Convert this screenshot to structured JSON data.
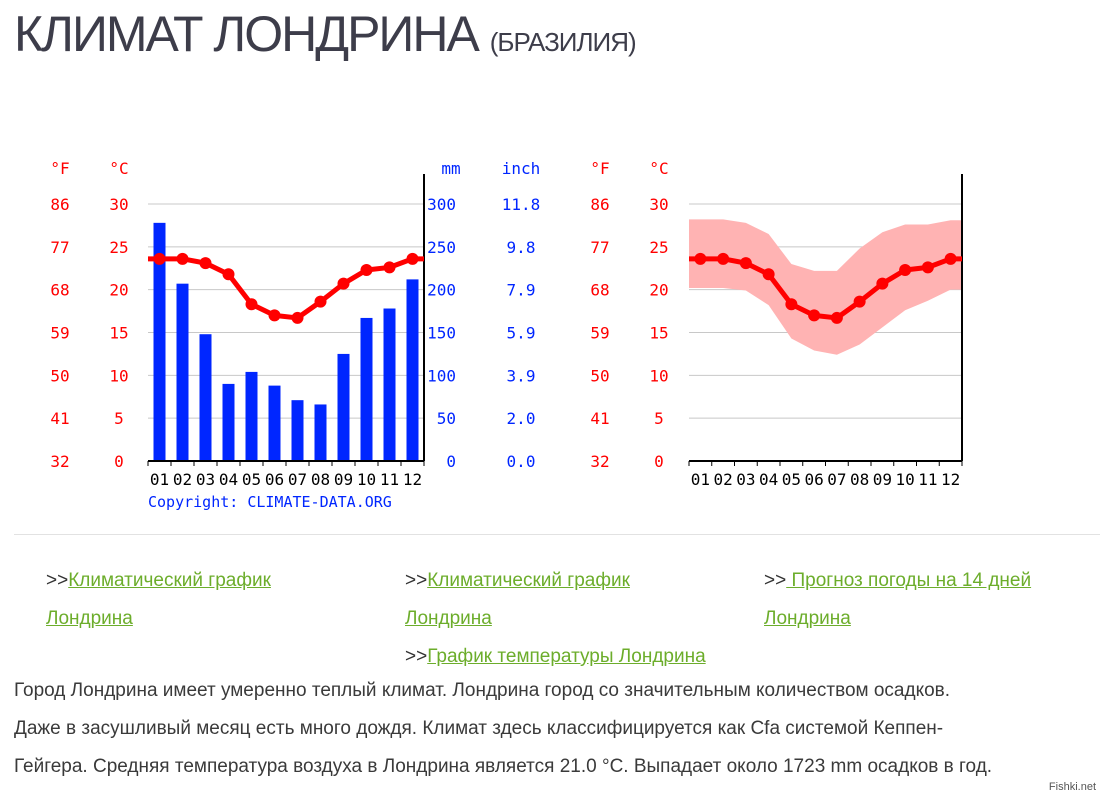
{
  "page": {
    "title": "КЛИМАТ ЛОНДРИНА",
    "subtitle": "(БРАЗИЛИЯ)"
  },
  "colors": {
    "temperature": "#ff0000",
    "precipitation_bar": "#0026ff",
    "precipitation_text": "#0026ff",
    "temp_band": "#ffb3b3",
    "link": "#6cad2b"
  },
  "chart_data": [
    {
      "type": "bar",
      "categories": [
        "01",
        "02",
        "03",
        "04",
        "05",
        "06",
        "07",
        "08",
        "09",
        "10",
        "11",
        "12"
      ],
      "axes_labels": {
        "temp_f_unit": "°F",
        "temp_c_unit": "°C",
        "precip_mm_unit": "mm",
        "precip_inch_unit": "inch"
      },
      "temp_c_ticks": [
        "0",
        "5",
        "10",
        "15",
        "20",
        "25",
        "30"
      ],
      "temp_f_ticks": [
        "32",
        "41",
        "50",
        "59",
        "68",
        "77",
        "86"
      ],
      "precip_mm_ticks": [
        "0",
        "50",
        "100",
        "150",
        "200",
        "250",
        "300"
      ],
      "precip_inch_ticks": [
        "0.0",
        "2.0",
        "3.9",
        "5.9",
        "7.9",
        "9.8",
        "11.8"
      ],
      "ylim_c": [
        0,
        30
      ],
      "ylim_mm": [
        0,
        300
      ],
      "series": [
        {
          "values": [
            278,
            207,
            148,
            90,
            104,
            88,
            71,
            66,
            125,
            167,
            178,
            212
          ]
        },
        {
          "values": [
            23.6,
            23.6,
            23.1,
            21.8,
            18.3,
            17.0,
            16.7,
            18.6,
            20.7,
            22.3,
            22.6,
            23.6
          ]
        }
      ],
      "grid": true,
      "copyright": "Copyright: CLIMATE-DATA.ORG"
    },
    {
      "type": "area",
      "categories": [
        "01",
        "02",
        "03",
        "04",
        "05",
        "06",
        "07",
        "08",
        "09",
        "10",
        "11",
        "12"
      ],
      "axes_labels": {
        "temp_f_unit": "°F",
        "temp_c_unit": "°C"
      },
      "temp_c_ticks": [
        "0",
        "5",
        "10",
        "15",
        "20",
        "25",
        "30"
      ],
      "temp_f_ticks": [
        "32",
        "41",
        "50",
        "59",
        "68",
        "77",
        "86"
      ],
      "ylim_c": [
        0,
        30
      ],
      "series": [
        {
          "values": [
            23.6,
            23.6,
            23.1,
            21.8,
            18.3,
            17.0,
            16.7,
            18.6,
            20.7,
            22.3,
            22.6,
            23.6
          ]
        },
        {
          "values": [
            28.2,
            28.2,
            27.8,
            26.5,
            23.0,
            22.2,
            22.2,
            24.8,
            26.7,
            27.6,
            27.6,
            28.1
          ]
        },
        {
          "values": [
            20.2,
            20.2,
            19.9,
            18.2,
            14.3,
            12.9,
            12.4,
            13.6,
            15.6,
            17.6,
            18.7,
            20.0
          ]
        }
      ],
      "grid": true
    }
  ],
  "links": {
    "col1_prefix": ">>",
    "col1_line1": "Климатический график",
    "col1_line2": "Лондрина",
    "col2_prefix": ">>",
    "col2_line1": "Климатический график",
    "col2_line2": "Лондрина",
    "col2_extra_prefix": ">>",
    "col2_extra": "График температуры Лондрина",
    "col3_prefix": ">>",
    "col3_line1": " Прогноз погоды на 14 дней",
    "col3_line2": "Лондрина"
  },
  "description": {
    "line1": "Город Лондрина имеет умеренно теплый климат. Лондрина город со значительным количеством осадков.",
    "line2": "Даже в засушливый месяц есть много дождя. Климат здесь классифицируется как Cfa системой Кеппен-",
    "line3": "Гейгера. Средняя температура воздуха в Лондрина является 21.0 °C. Выпадает около 1723 mm осадков в год."
  },
  "watermark": "Fishki.net"
}
